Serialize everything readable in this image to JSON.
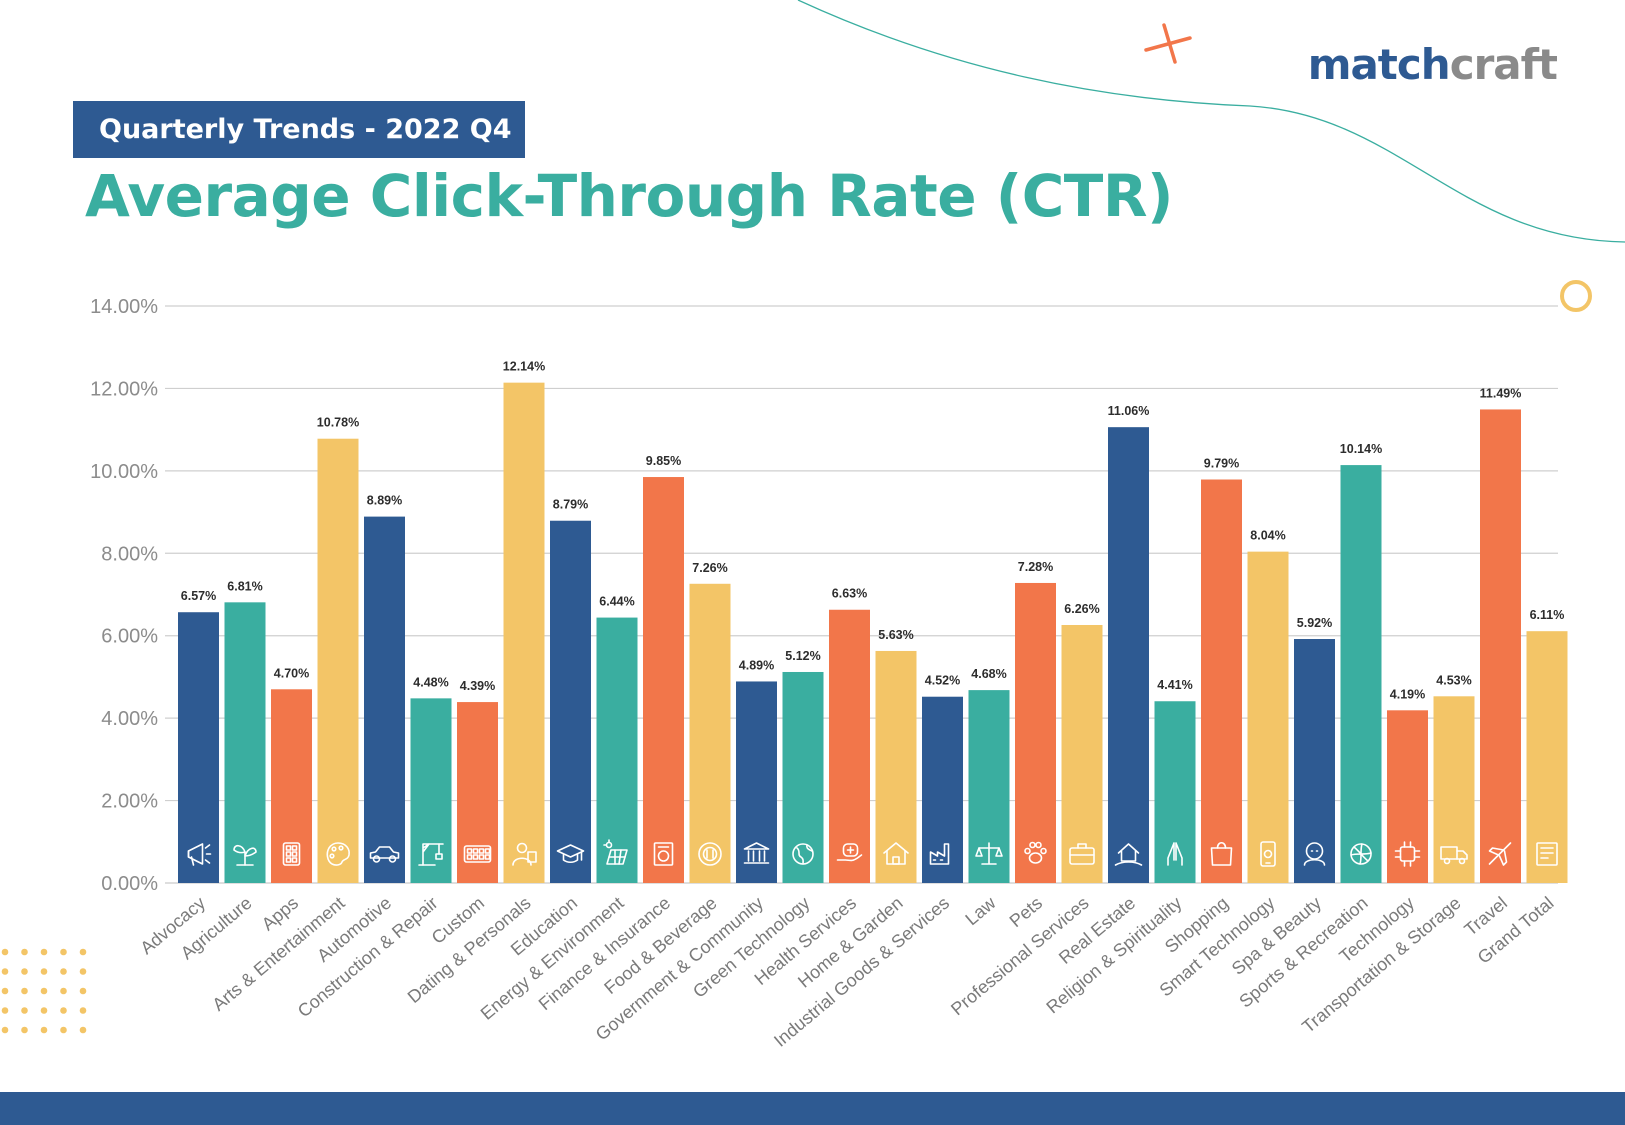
{
  "brand": {
    "logo_part1": "match",
    "logo_part2": "craft"
  },
  "header": {
    "subtitle": "Quarterly Trends - 2022 Q4",
    "title": "Average Click-Through Rate (CTR)"
  },
  "colors": {
    "blue": "#2e5a92",
    "teal": "#3aaea0",
    "orange": "#f2764a",
    "yellow": "#f3c567"
  },
  "chart_data": {
    "type": "bar",
    "title": "Average Click-Through Rate (CTR)",
    "xlabel": "",
    "ylabel": "",
    "ylim": [
      0,
      14
    ],
    "grid": true,
    "yticks": [
      "0.00%",
      "2.00%",
      "4.00%",
      "6.00%",
      "8.00%",
      "10.00%",
      "12.00%",
      "14.00%"
    ],
    "categories": [
      "Advocacy",
      "Agriculture",
      "Apps",
      "Arts & Entertainment",
      "Automotive",
      "Construction & Repair",
      "Custom",
      "Dating & Personals",
      "Education",
      "Energy & Environment",
      "Finance & Insurance",
      "Food & Beverage",
      "Government & Community",
      "Green Technology",
      "Health Services",
      "Home & Garden",
      "Industrial Goods & Services",
      "Law",
      "Pets",
      "Professional Services",
      "Real Estate",
      "Religion & Spirituality",
      "Shopping",
      "Smart Technology",
      "Spa & Beauty",
      "Sports & Recreation",
      "Technology",
      "Transportation & Storage",
      "Travel",
      "Grand Total"
    ],
    "values": [
      6.57,
      6.81,
      4.7,
      10.78,
      8.89,
      4.48,
      4.39,
      12.14,
      8.79,
      6.44,
      9.85,
      7.26,
      4.89,
      5.12,
      6.63,
      5.63,
      4.52,
      4.68,
      7.28,
      6.26,
      11.06,
      4.41,
      9.79,
      8.04,
      5.92,
      10.14,
      4.19,
      4.53,
      11.49,
      6.11
    ],
    "data_labels": [
      "6.57%",
      "6.81%",
      "4.70%",
      "10.78%",
      "8.89%",
      "4.48%",
      "4.39%",
      "12.14%",
      "8.79%",
      "6.44%",
      "9.85%",
      "7.26%",
      "4.89%",
      "5.12%",
      "6.63%",
      "5.63%",
      "4.52%",
      "4.68%",
      "7.28%",
      "6.26%",
      "11.06%",
      "4.41%",
      "9.79%",
      "8.04%",
      "5.92%",
      "10.14%",
      "4.19%",
      "4.53%",
      "11.49%",
      "6.11%"
    ],
    "bar_colors": [
      "#2e5a92",
      "#3aaea0",
      "#f2764a",
      "#f3c567",
      "#2e5a92",
      "#3aaea0",
      "#f2764a",
      "#f3c567",
      "#2e5a92",
      "#3aaea0",
      "#f2764a",
      "#f3c567",
      "#2e5a92",
      "#3aaea0",
      "#f2764a",
      "#f3c567",
      "#2e5a92",
      "#3aaea0",
      "#f2764a",
      "#f3c567",
      "#2e5a92",
      "#3aaea0",
      "#f2764a",
      "#f3c567",
      "#2e5a92",
      "#3aaea0",
      "#f2764a",
      "#f3c567",
      "#f2764a",
      "#f3c567"
    ],
    "icons": [
      "megaphone-icon",
      "sprout-icon",
      "apps-grid-icon",
      "palette-icon",
      "car-icon",
      "crane-icon",
      "calculator-icon",
      "person-icon",
      "graduation-cap-icon",
      "solar-panel-icon",
      "finance-document-icon",
      "food-plate-icon",
      "government-building-icon",
      "green-globe-icon",
      "health-hand-icon",
      "home-icon",
      "factory-icon",
      "scales-icon",
      "paw-icon",
      "briefcase-icon",
      "house-hand-icon",
      "praying-hands-icon",
      "shopping-bag-icon",
      "smartphone-icon",
      "spa-face-icon",
      "ball-icon",
      "chip-icon",
      "truck-icon",
      "airplane-icon",
      "total-document-icon"
    ]
  }
}
